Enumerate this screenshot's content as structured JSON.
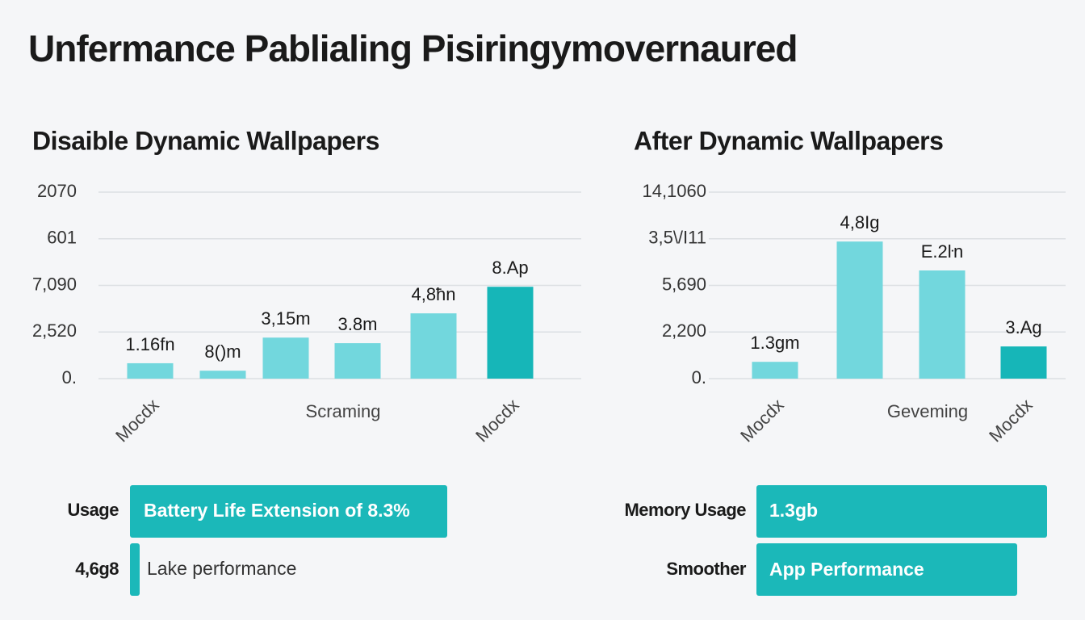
{
  "title": "Unfermance Pablialing Pisiringymovernaured",
  "chart_data": [
    {
      "type": "bar",
      "title": "Disaible  Dynamic Wallpapers",
      "categories": [
        "Mocdx",
        null,
        null,
        "Scraming",
        null,
        "Mocdx"
      ],
      "values": [
        0.33,
        0.17,
        0.88,
        0.76,
        1.4,
        1.97
      ],
      "value_labels": [
        "1.16fn",
        "8()m",
        "3,15m",
        "3.8m",
        "4,8ħn",
        "8.Ap"
      ],
      "colors": [
        "#72d7dd",
        "#72d7dd",
        "#72d7dd",
        "#72d7dd",
        "#72d7dd",
        "#16b6b8"
      ],
      "ylim": [
        0,
        4
      ],
      "yticks": [
        {
          "value": 0,
          "label": "0."
        },
        {
          "value": 1,
          "label": "2,520"
        },
        {
          "value": 2,
          "label": "7,090"
        },
        {
          "value": 3,
          "label": "601"
        },
        {
          "value": 4,
          "label": "2070"
        }
      ],
      "grid": true
    },
    {
      "type": "bar",
      "title": "After Dynamic Wallpapers",
      "categories": [
        "Mocdx",
        null,
        "Geveming",
        "Mocdx"
      ],
      "values": [
        0.36,
        2.94,
        2.32,
        0.69
      ],
      "value_labels": [
        "1.3gm",
        "4,8Ig",
        "E.2ŀn",
        "3.Ag"
      ],
      "colors": [
        "#72d7dd",
        "#72d7dd",
        "#72d7dd",
        "#16b6b8"
      ],
      "ylim": [
        0,
        4
      ],
      "yticks": [
        {
          "value": 0,
          "label": "0."
        },
        {
          "value": 1,
          "label": "2,200"
        },
        {
          "value": 2,
          "label": "5,690"
        },
        {
          "value": 3,
          "label": "3,5\\/I11"
        },
        {
          "value": 4,
          "label": "14,1060"
        }
      ],
      "grid": true
    }
  ],
  "callouts": [
    {
      "label": "Usage",
      "text": "Battery Life Extension of 8.3%"
    },
    {
      "label": "4,6g8",
      "text": "Lake performance"
    },
    {
      "label": "Memory Usage",
      "text": "1.3gb"
    },
    {
      "label": "Smoother",
      "text": "App Performance"
    }
  ]
}
